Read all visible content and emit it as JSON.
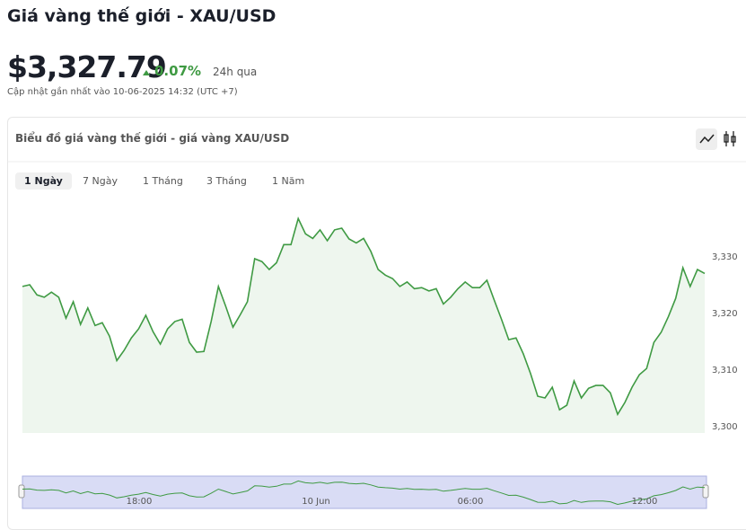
{
  "header": {
    "title": "Giá vàng thế giới - XAU/USD",
    "price": "$3,327.79",
    "change": "0.07%",
    "change_period": "24h qua",
    "updated": "Cập nhật gần nhất vào 10-06-2025 14:32 (UTC +7)"
  },
  "card": {
    "title": "Biểu đồ giá vàng thế giới - giá vàng XAU/USD",
    "tabs": [
      "1 Ngày",
      "7 Ngày",
      "1 Tháng",
      "3 Tháng",
      "1 Năm"
    ],
    "selected_tab": 0
  },
  "chart_data": {
    "type": "area",
    "color": "#3f9a43",
    "values": [
      3324.8,
      3325.1,
      3323.3,
      3322.9,
      3323.8,
      3322.9,
      3319.2,
      3322.1,
      3318.1,
      3321.0,
      3317.9,
      3318.4,
      3316.0,
      3311.7,
      3313.5,
      3315.7,
      3317.3,
      3319.7,
      3316.8,
      3314.6,
      3317.3,
      3318.6,
      3319.0,
      3314.9,
      3313.2,
      3313.3,
      3318.6,
      3324.8,
      3321.3,
      3317.6,
      3319.8,
      3322.1,
      3329.7,
      3329.2,
      3327.8,
      3329.0,
      3332.2,
      3332.2,
      3336.8,
      3334.1,
      3333.3,
      3334.8,
      3332.9,
      3334.8,
      3335.1,
      3333.2,
      3332.5,
      3333.3,
      3331.0,
      3327.8,
      3326.8,
      3326.2,
      3324.8,
      3325.6,
      3324.4,
      3324.6,
      3324.0,
      3324.4,
      3321.7,
      3322.9,
      3324.4,
      3325.6,
      3324.6,
      3324.6,
      3325.9,
      3322.4,
      3319.0,
      3315.4,
      3315.7,
      3312.9,
      3309.4,
      3305.4,
      3305.1,
      3307.0,
      3303.0,
      3303.8,
      3308.1,
      3305.1,
      3306.8,
      3307.3,
      3307.3,
      3306.0,
      3302.2,
      3304.3,
      3307.0,
      3309.2,
      3310.3,
      3314.9,
      3316.7,
      3319.5,
      3322.7,
      3328.1,
      3324.8,
      3327.8,
      3327.1
    ],
    "ylim": [
      3298.9,
      3341.3
    ],
    "yticks": [
      {
        "value": 3300,
        "label": "3,300"
      },
      {
        "value": 3310,
        "label": "3,310"
      },
      {
        "value": 3320,
        "label": "3,320"
      },
      {
        "value": 3330,
        "label": "3,330"
      }
    ],
    "navigator_labels": [
      "18:00",
      "10 Jun",
      "06:00",
      "12:00"
    ]
  }
}
